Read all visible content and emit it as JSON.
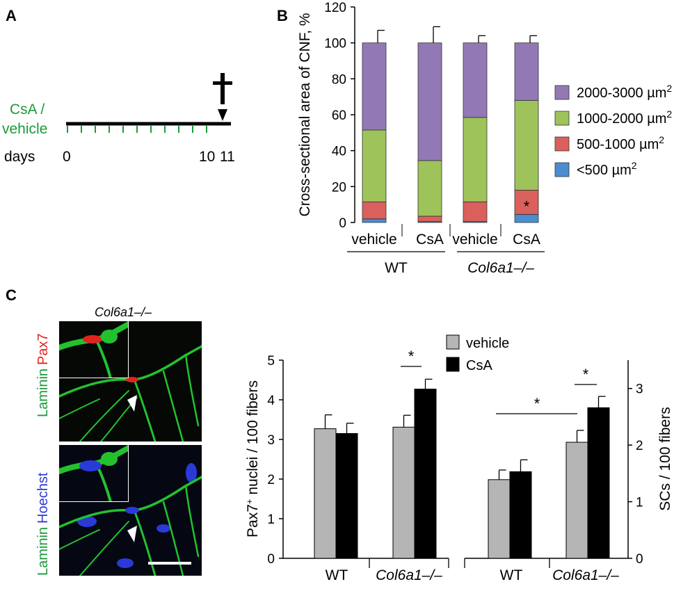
{
  "panel_labels": [
    "A",
    "B",
    "C"
  ],
  "timeline": {
    "treatment_label_line1": "CsA /",
    "treatment_label_line2": "vehicle",
    "axis_label": "days",
    "day_labels": [
      "0",
      "10",
      "11"
    ],
    "injection_days": [
      0,
      1,
      2,
      3,
      4,
      5,
      6,
      7,
      8,
      9,
      10
    ],
    "sacrifice_day": 11,
    "colors": {
      "treatment": "#1a9a3a",
      "axis": "#000000"
    },
    "icon": "dagger-icon"
  },
  "micrograph": {
    "title": "Col6a1–/–",
    "stain_top_word1": "Laminin",
    "stain_top_word2": "Pax7",
    "stain_bottom_word1": "Laminin",
    "stain_bottom_word2": "Hoechst",
    "colors": {
      "laminin": "#22c22e",
      "pax7": "#e0241d",
      "hoechst": "#2a3ad8"
    },
    "icons": [
      "arrowhead-icon",
      "scale-bar"
    ]
  },
  "chart_data": [
    {
      "type": "bar",
      "stacked": true,
      "ylabel": "Cross-sectional area of CNF, %",
      "ylim": [
        0,
        120
      ],
      "yticks": [
        0,
        20,
        40,
        60,
        80,
        100,
        120
      ],
      "categories": [
        "vehicle",
        "CsA",
        "vehicle",
        "CsA"
      ],
      "groups": [
        {
          "label": "WT",
          "italic": false,
          "members": [
            0,
            1
          ]
        },
        {
          "label": "Col6a1–/–",
          "italic": true,
          "members": [
            2,
            3
          ]
        }
      ],
      "series": [
        {
          "name": "<500 µm2",
          "color": "#4a8ed0",
          "values": [
            2,
            0.5,
            0.5,
            4.5
          ],
          "errors": [
            1,
            0.5,
            0.8,
            1.5
          ]
        },
        {
          "name": "500-1000 µm2",
          "color": "#d9605c",
          "values": [
            9.5,
            3,
            11,
            13.5
          ],
          "errors": [
            4,
            4,
            3,
            3.5
          ]
        },
        {
          "name": "1000-2000 µm2",
          "color": "#9dc35a",
          "values": [
            40,
            31,
            47,
            50
          ],
          "errors": [
            7,
            9,
            4,
            4.5
          ]
        },
        {
          "name": "2000-3000 µm2",
          "color": "#9279b6",
          "values": [
            48.5,
            65.5,
            41.5,
            32
          ],
          "errors": [
            7,
            9,
            4,
            4
          ]
        }
      ],
      "legend": "right",
      "annotations": [
        {
          "text": "*",
          "category": 3,
          "y": 7.5
        }
      ]
    },
    {
      "type": "bar",
      "ylabel": "Pax7+ nuclei / 100 fibers",
      "ylim": [
        0,
        5
      ],
      "yticks": [
        0,
        1,
        2,
        3,
        4,
        5
      ],
      "categories": [
        "WT",
        "Col6a1–/–"
      ],
      "series": [
        {
          "name": "vehicle",
          "color": "#b5b5b5",
          "values": [
            3.27,
            3.31
          ],
          "errors": [
            0.35,
            0.3
          ]
        },
        {
          "name": "CsA",
          "color": "#000000",
          "values": [
            3.15,
            4.27
          ],
          "errors": [
            0.26,
            0.25
          ]
        }
      ],
      "annotations": [
        {
          "text": "*",
          "between": [
            [
              1,
              0
            ],
            [
              1,
              1
            ]
          ]
        }
      ]
    },
    {
      "type": "bar",
      "ylabel": "SCs / 100 fibers",
      "ylim": [
        0,
        3.5
      ],
      "yticks": [
        0,
        1,
        2,
        3
      ],
      "categories": [
        "WT",
        "Col6a1–/–"
      ],
      "series": [
        {
          "name": "vehicle",
          "color": "#b5b5b5",
          "values": [
            1.39,
            2.05
          ],
          "errors": [
            0.17,
            0.21
          ]
        },
        {
          "name": "CsA",
          "color": "#000000",
          "values": [
            1.53,
            2.66
          ],
          "errors": [
            0.21,
            0.2
          ]
        }
      ],
      "legend_entries": [
        "vehicle",
        "CsA"
      ],
      "annotations": [
        {
          "text": "*",
          "between": [
            [
              0,
              0
            ],
            [
              1,
              0
            ]
          ]
        },
        {
          "text": "*",
          "between": [
            [
              1,
              0
            ],
            [
              1,
              1
            ]
          ]
        }
      ]
    }
  ]
}
